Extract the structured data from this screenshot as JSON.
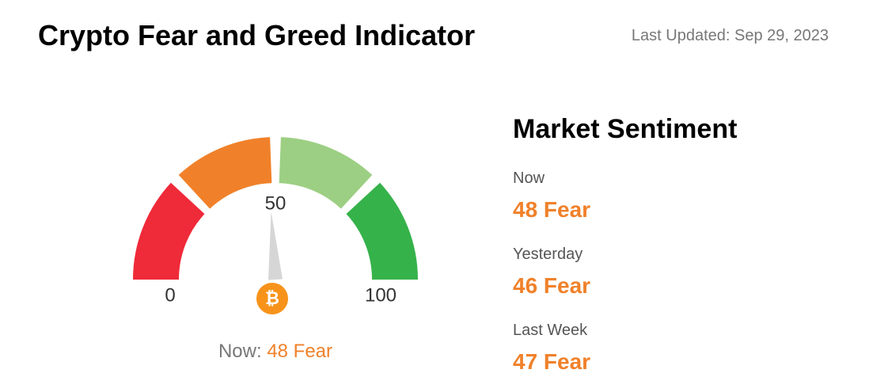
{
  "header": {
    "title": "Crypto Fear and Greed Indicator",
    "updated": "Last Updated: Sep 29, 2023"
  },
  "gauge": {
    "ticks": [
      0,
      50,
      100
    ],
    "value": 48,
    "value_label": "48 Fear",
    "caption": "Now:"
  },
  "sentiment": {
    "title": "Market Sentiment",
    "items": [
      {
        "label": "Now",
        "value": "48 Fear"
      },
      {
        "label": "Yesterday",
        "value": "46 Fear"
      },
      {
        "label": "Last Week",
        "value": "47 Fear"
      }
    ]
  }
}
